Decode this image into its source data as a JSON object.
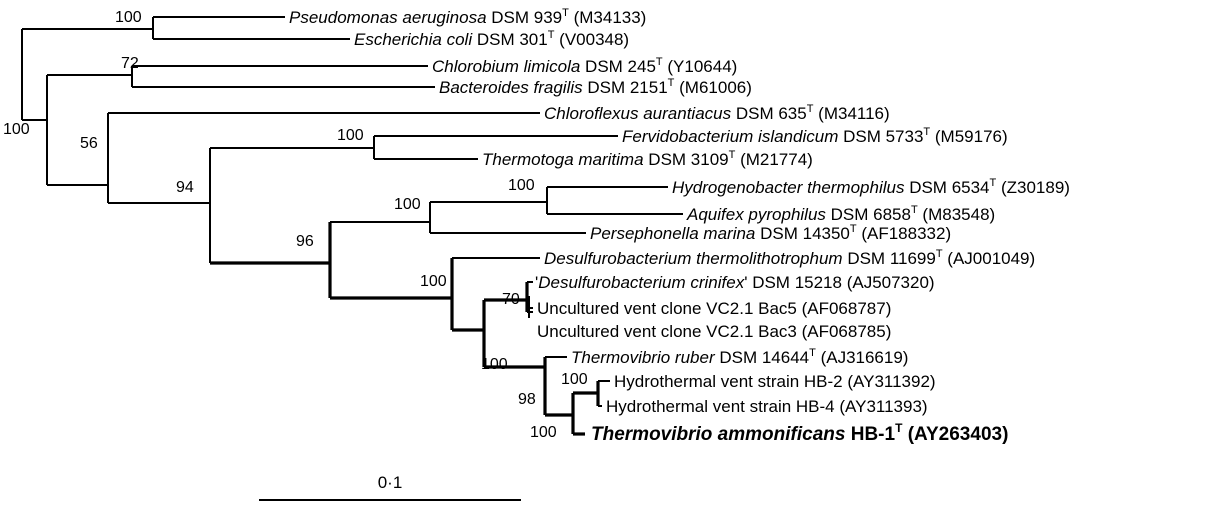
{
  "taxa": [
    {
      "name": "Pseudomonas aeruginosa",
      "strain": " DSM 939",
      "sup": "T",
      "acc": " (M34133)"
    },
    {
      "name": "Escherichia coli",
      "strain": " DSM 301",
      "sup": "T",
      "acc": " (V00348)"
    },
    {
      "name": "Chlorobium limicola",
      "strain": " DSM 245",
      "sup": "T",
      "acc": " (Y10644)"
    },
    {
      "name": "Bacteroides fragilis",
      "strain": " DSM 2151",
      "sup": "T",
      "acc": " (M61006)"
    },
    {
      "name": "Chloroflexus aurantiacus",
      "strain": " DSM 635",
      "sup": "T",
      "acc": " (M34116)"
    },
    {
      "name": "Fervidobacterium islandicum",
      "strain": " DSM 5733",
      "sup": "T",
      "acc": " (M59176)"
    },
    {
      "name": "Thermotoga maritima",
      "strain": " DSM 3109",
      "sup": "T",
      "acc": " (M21774)"
    },
    {
      "name": "Hydrogenobacter thermophilus",
      "strain": " DSM 6534",
      "sup": "T",
      "acc": " (Z30189)"
    },
    {
      "name": "Aquifex pyrophilus",
      "strain": " DSM 6858",
      "sup": "T",
      "acc": " (M83548)"
    },
    {
      "name": "Persephonella marina",
      "strain": " DSM 14350",
      "sup": "T",
      "acc": " (AF188332)"
    },
    {
      "name": "Desulfurobacterium thermolithotrophum",
      "strain": " DSM 11699",
      "sup": "T",
      "acc": " (AJ001049)"
    },
    {
      "pre": "'",
      "name": "Desulfurobacterium crinifex",
      "strain": "' DSM 15218",
      "sup": "",
      "acc": " (AJ507320)"
    },
    {
      "name": "",
      "strain": "Uncultured vent clone VC2.1 Bac5",
      "sup": "",
      "acc": " (AF068787)"
    },
    {
      "name": "",
      "strain": "Uncultured vent clone VC2.1 Bac3",
      "sup": "",
      "acc": " (AF068785)"
    },
    {
      "name": "Thermovibrio ruber",
      "strain": " DSM 14644",
      "sup": "T",
      "acc": " (AJ316619)"
    },
    {
      "name": "",
      "strain": "Hydrothermal vent strain HB-2",
      "sup": "",
      "acc": " (AY311392)"
    },
    {
      "name": "",
      "strain": "Hydrothermal vent strain HB-4",
      "sup": "",
      "acc": " (AY311393)"
    },
    {
      "name": "Thermovibrio ammonificans",
      "strain": " HB-1",
      "sup": "T",
      "acc": " (AY263403)",
      "bold": true
    }
  ],
  "bootstrap": [
    "100",
    "72",
    "100",
    "56",
    "100",
    "94",
    "100",
    "96",
    "100",
    "70",
    "100",
    "98",
    "100",
    "100"
  ],
  "scale_bar": {
    "label": "0·1"
  }
}
